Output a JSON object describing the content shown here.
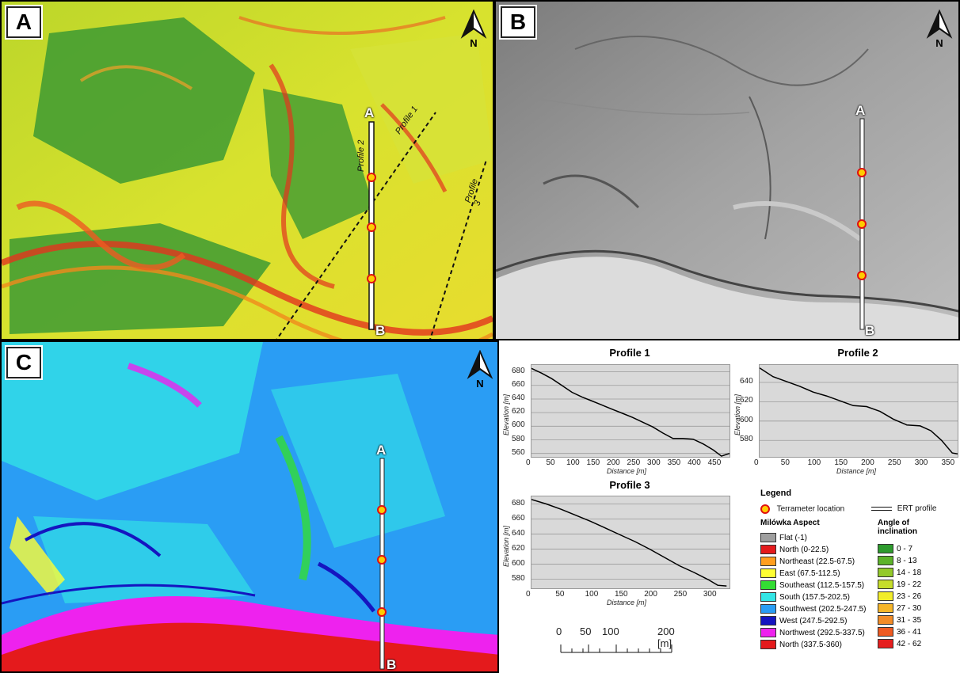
{
  "panels": {
    "a": "A",
    "b": "B",
    "c": "C"
  },
  "north_label": "N",
  "profile_ends": {
    "start": "A",
    "end": "B"
  },
  "profile_names": [
    "Profile 1",
    "Profile 2",
    "Profile 3"
  ],
  "charts": [
    {
      "title": "Profile 1",
      "xlabel": "Distance [m]",
      "ylabel": "Elevation [m]",
      "xticks": [
        "0",
        "50",
        "100",
        "150",
        "200",
        "250",
        "300",
        "350",
        "400",
        "450"
      ],
      "yticks": [
        "680",
        "660",
        "640",
        "620",
        "600",
        "580",
        "560"
      ]
    },
    {
      "title": "Profile 2",
      "xlabel": "Distance [m]",
      "ylabel": "Elevation [m]",
      "xticks": [
        "0",
        "50",
        "100",
        "150",
        "200",
        "250",
        "300",
        "350"
      ],
      "yticks": [
        "640",
        "620",
        "600",
        "580"
      ]
    },
    {
      "title": "Profile 3",
      "xlabel": "Distance [m]",
      "ylabel": "Elevation [m]",
      "xticks": [
        "0",
        "50",
        "100",
        "150",
        "200",
        "250",
        "300"
      ],
      "yticks": [
        "680",
        "660",
        "640",
        "620",
        "600",
        "580"
      ]
    }
  ],
  "chart_data": [
    {
      "type": "line",
      "title": "Profile 1",
      "xlabel": "Distance [m]",
      "ylabel": "Elevation [m]",
      "xlim": [
        0,
        490
      ],
      "ylim": [
        555,
        690
      ],
      "x": [
        0,
        25,
        50,
        75,
        100,
        125,
        150,
        175,
        200,
        225,
        250,
        275,
        300,
        325,
        350,
        375,
        400,
        425,
        450,
        470,
        490
      ],
      "y": [
        685,
        678,
        670,
        660,
        650,
        643,
        637,
        631,
        625,
        619,
        613,
        606,
        599,
        590,
        582,
        582,
        581,
        574,
        565,
        556,
        560
      ]
    },
    {
      "type": "line",
      "title": "Profile 2",
      "xlabel": "Distance [m]",
      "ylabel": "Elevation [m]",
      "xlim": [
        0,
        370
      ],
      "ylim": [
        563,
        658
      ],
      "x": [
        0,
        25,
        50,
        75,
        100,
        125,
        150,
        175,
        200,
        225,
        250,
        275,
        300,
        320,
        340,
        360,
        370
      ],
      "y": [
        655,
        646,
        641,
        636,
        630,
        626,
        621,
        616,
        615,
        610,
        602,
        596,
        595,
        590,
        580,
        567,
        566
      ]
    },
    {
      "type": "line",
      "title": "Profile 3",
      "xlabel": "Distance [m]",
      "ylabel": "Elevation [m]",
      "xlim": [
        0,
        335
      ],
      "ylim": [
        568,
        690
      ],
      "x": [
        0,
        25,
        50,
        75,
        100,
        125,
        150,
        175,
        200,
        225,
        250,
        275,
        300,
        315,
        330
      ],
      "y": [
        686,
        680,
        673,
        665,
        657,
        648,
        639,
        630,
        620,
        609,
        598,
        589,
        579,
        572,
        571
      ]
    }
  ],
  "scale": {
    "labels": [
      "0",
      "50",
      "100",
      "200 [m]"
    ],
    "values": [
      0,
      50,
      100,
      200
    ]
  },
  "legend": {
    "title": "Legend",
    "terrameter": "Terrameter location",
    "ert": "ERT profile",
    "aspect_title": "Milówka Aspect",
    "aspect": [
      {
        "label": "Flat (-1)",
        "color": "#9e9e9e"
      },
      {
        "label": "North (0-22.5)",
        "color": "#e41a1c"
      },
      {
        "label": "Northeast (22.5-67.5)",
        "color": "#ff9e1f"
      },
      {
        "label": "East (67.5-112.5)",
        "color": "#ffff33"
      },
      {
        "label": "Southeast (112.5-157.5)",
        "color": "#33dd33"
      },
      {
        "label": "South (157.5-202.5)",
        "color": "#33e5e5"
      },
      {
        "label": "Southwest (202.5-247.5)",
        "color": "#2a9df4"
      },
      {
        "label": "West (247.5-292.5)",
        "color": "#1515c0"
      },
      {
        "label": "Northwest (292.5-337.5)",
        "color": "#ee22ee"
      },
      {
        "label": "North (337.5-360)",
        "color": "#e41a1c"
      }
    ],
    "angle_title": "Angle of inclination",
    "angle": [
      {
        "label": "0 - 7",
        "color": "#2e9b2e"
      },
      {
        "label": "8 - 13",
        "color": "#5db32a"
      },
      {
        "label": "14 - 18",
        "color": "#93c92a"
      },
      {
        "label": "19 - 22",
        "color": "#c6dd2b"
      },
      {
        "label": "23 - 26",
        "color": "#f2ed2b"
      },
      {
        "label": "27 - 30",
        "color": "#f6b62a"
      },
      {
        "label": "31 - 35",
        "color": "#f28c28"
      },
      {
        "label": "36 - 41",
        "color": "#ee5a22"
      },
      {
        "label": "42 - 62",
        "color": "#e51e1e"
      }
    ]
  }
}
